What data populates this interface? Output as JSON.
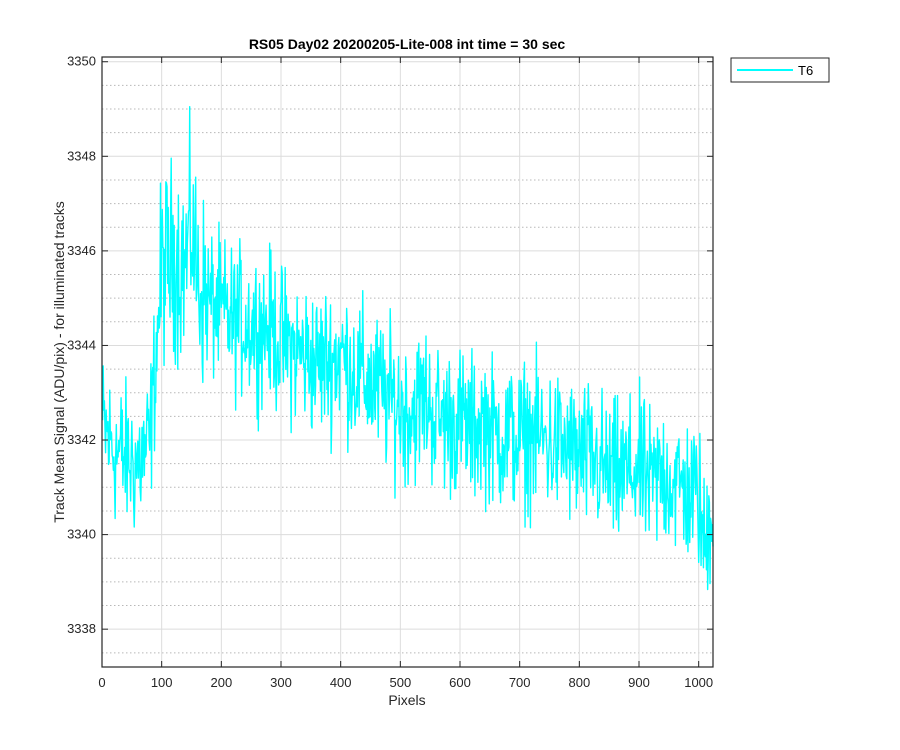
{
  "chart_data": {
    "type": "line",
    "title": "RS05 Day02 20200205-Lite-008 int time = 30 sec",
    "xlabel": "Pixels",
    "ylabel": "Track Mean Signal (ADU/pix) - for illuminated tracks",
    "xlim": [
      0,
      1024
    ],
    "ylim": [
      3337.2,
      3350.1
    ],
    "xticks": [
      0,
      100,
      200,
      300,
      400,
      500,
      600,
      700,
      800,
      900,
      1000
    ],
    "yticks": [
      3338,
      3340,
      3342,
      3344,
      3346,
      3348,
      3350
    ],
    "grid": "major-solid-minor-dotted",
    "legend_position": "outside-top-right",
    "series": [
      {
        "name": "T6",
        "color": "#00ffff",
        "x": [
          0,
          20,
          40,
          60,
          80,
          100,
          120,
          140,
          150,
          160,
          180,
          200,
          220,
          240,
          260,
          280,
          300,
          320,
          340,
          360,
          380,
          400,
          420,
          440,
          460,
          480,
          500,
          520,
          540,
          560,
          580,
          600,
          620,
          640,
          660,
          680,
          700,
          720,
          740,
          760,
          780,
          800,
          820,
          840,
          860,
          880,
          900,
          920,
          940,
          960,
          980,
          1000,
          1010,
          1020
        ],
        "y": [
          3342.3,
          3341.8,
          3341.6,
          3341.5,
          3341.9,
          3345.6,
          3345.9,
          3345.7,
          3346.6,
          3345.4,
          3344.9,
          3344.7,
          3344.5,
          3344.5,
          3344.4,
          3344.4,
          3344.1,
          3343.9,
          3343.8,
          3343.6,
          3343.7,
          3343.8,
          3343.5,
          3343.3,
          3343.1,
          3342.9,
          3342.7,
          3342.6,
          3342.9,
          3342.5,
          3342.4,
          3342.4,
          3342.2,
          3342.4,
          3342.1,
          3342.1,
          3342.0,
          3342.1,
          3342.0,
          3341.9,
          3341.8,
          3341.6,
          3341.6,
          3341.4,
          3341.2,
          3341.3,
          3341.4,
          3341.0,
          3341.3,
          3341.1,
          3340.9,
          3340.8,
          3339.6,
          3340.6
        ]
      }
    ]
  }
}
